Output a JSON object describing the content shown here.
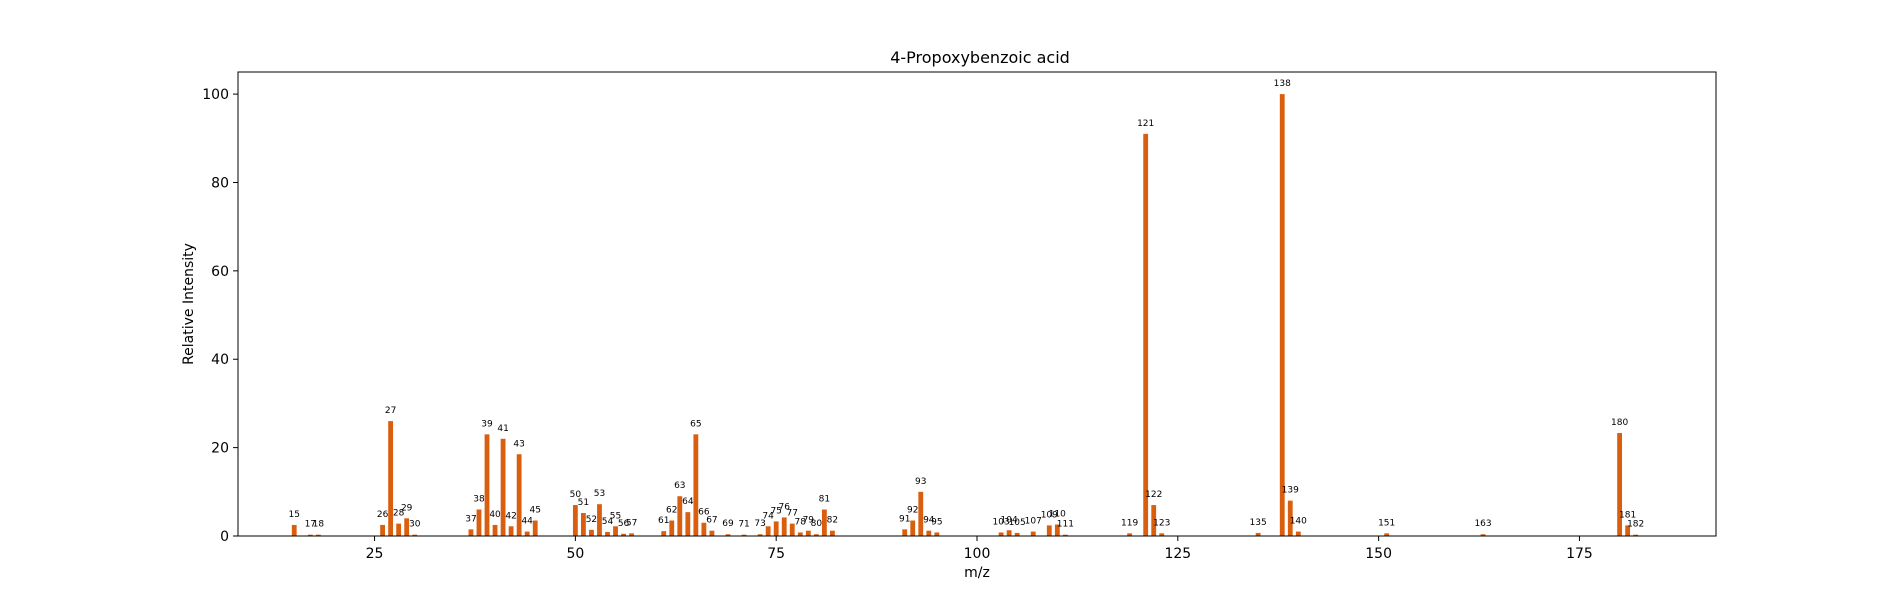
{
  "chart_data": {
    "type": "bar",
    "title": "4-Propoxybenzoic acid",
    "xlabel": "m/z",
    "ylabel": "Relative Intensity",
    "xlim": [
      8,
      192
    ],
    "ylim": [
      0,
      105
    ],
    "xticks": [
      25,
      50,
      75,
      100,
      125,
      150,
      175
    ],
    "yticks": [
      0,
      20,
      40,
      60,
      80,
      100
    ],
    "grid": false,
    "bar_color": "#d95f0e",
    "x": [
      15,
      17,
      18,
      26,
      27,
      28,
      29,
      30,
      37,
      38,
      39,
      40,
      41,
      42,
      43,
      44,
      45,
      50,
      51,
      52,
      53,
      54,
      55,
      56,
      57,
      61,
      62,
      63,
      64,
      65,
      66,
      67,
      69,
      71,
      73,
      74,
      75,
      76,
      77,
      78,
      79,
      80,
      81,
      82,
      91,
      92,
      93,
      94,
      95,
      103,
      104,
      105,
      107,
      109,
      110,
      111,
      119,
      121,
      122,
      123,
      135,
      138,
      139,
      140,
      151,
      163,
      180,
      181,
      182
    ],
    "values": [
      2.5,
      0.3,
      0.3,
      2.5,
      26,
      2.8,
      4,
      0.3,
      1.5,
      6,
      23,
      2.5,
      22,
      2.2,
      18.5,
      1,
      3.5,
      7,
      5.2,
      1.4,
      7.2,
      0.9,
      2.2,
      0.5,
      0.6,
      1.1,
      3.5,
      9,
      5.4,
      23,
      3,
      1.2,
      0.4,
      0.3,
      0.4,
      2.2,
      3.3,
      4.2,
      2.8,
      0.8,
      1.2,
      0.4,
      6,
      1.2,
      1.5,
      3.5,
      10,
      1.2,
      0.8,
      0.8,
      1.3,
      0.7,
      1,
      2.4,
      2.6,
      0.3,
      0.6,
      91,
      7,
      0.6,
      0.7,
      100,
      8,
      1,
      0.6,
      0.4,
      23.3,
      2.4,
      0.3
    ],
    "labels": [
      "15",
      "17",
      "18",
      "26",
      "27",
      "28",
      "29",
      "30",
      "37",
      "38",
      "39",
      "40",
      "41",
      "42",
      "43",
      "44",
      "45",
      "50",
      "51",
      "52",
      "53",
      "54",
      "55",
      "56",
      "57",
      "61",
      "62",
      "63",
      "64",
      "65",
      "66",
      "67",
      "69",
      "71",
      "73",
      "74",
      "75",
      "76",
      "77",
      "78",
      "79",
      "80",
      "81",
      "82",
      "91",
      "92",
      "93",
      "94",
      "95",
      "103",
      "104",
      "105",
      "107",
      "109",
      "110",
      "111",
      "119",
      "121",
      "122",
      "123",
      "135",
      "138",
      "139",
      "140",
      "151",
      "163",
      "180",
      "181",
      "182"
    ]
  }
}
